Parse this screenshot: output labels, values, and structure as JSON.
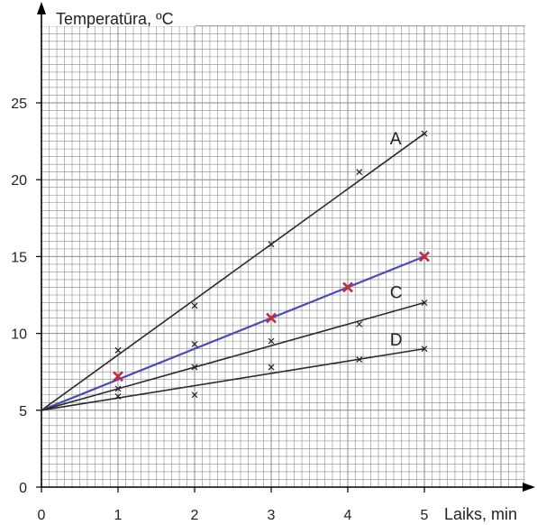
{
  "chart_data": {
    "type": "line",
    "ylabel": "Temperatūra, ºC",
    "xlabel": "Laiks, min",
    "xlim": [
      0,
      5
    ],
    "ylim": [
      0,
      30
    ],
    "x_ticks": [
      "0",
      "1",
      "2",
      "3",
      "4",
      "5"
    ],
    "y_ticks": [
      "0",
      "5",
      "10",
      "15",
      "20",
      "25"
    ],
    "grid": true,
    "colors": {
      "grid": "#8c8c8c",
      "axis": "#000000",
      "line": "#2b2b2b",
      "highlight_line": "#4a4ab8",
      "highlight_marker": "#c8283c",
      "marker": "#222222"
    },
    "series": [
      {
        "name": "A",
        "line": {
          "x": [
            0,
            5
          ],
          "y": [
            5,
            23
          ]
        },
        "points": [
          [
            1,
            8.9
          ],
          [
            2,
            11.8
          ],
          [
            3,
            15.8
          ],
          [
            4.15,
            20.5
          ],
          [
            5,
            23
          ]
        ]
      },
      {
        "name": "",
        "highlight": true,
        "line": {
          "x": [
            0,
            5
          ],
          "y": [
            5,
            15
          ]
        },
        "points": [
          [
            1,
            7.2
          ],
          [
            3,
            11
          ],
          [
            4,
            13
          ],
          [
            5,
            15
          ]
        ]
      },
      {
        "name": "C",
        "line": {
          "x": [
            0,
            5
          ],
          "y": [
            5,
            12
          ]
        },
        "points": [
          [
            1,
            6.4
          ],
          [
            2,
            7.8
          ],
          [
            2,
            9.3
          ],
          [
            3,
            9.5
          ],
          [
            4.15,
            10.6
          ],
          [
            5,
            12
          ]
        ]
      },
      {
        "name": "D",
        "line": {
          "x": [
            0,
            5
          ],
          "y": [
            5,
            9
          ]
        },
        "points": [
          [
            1,
            5.9
          ],
          [
            2,
            6
          ],
          [
            3,
            7.8
          ],
          [
            4.15,
            8.3
          ],
          [
            5,
            9
          ]
        ]
      }
    ],
    "line_labels": [
      {
        "text": "A",
        "x": 4.55,
        "y": 22.3
      },
      {
        "text": "C",
        "x": 4.55,
        "y": 12.3
      },
      {
        "text": "D",
        "x": 4.55,
        "y": 9.2
      }
    ]
  }
}
